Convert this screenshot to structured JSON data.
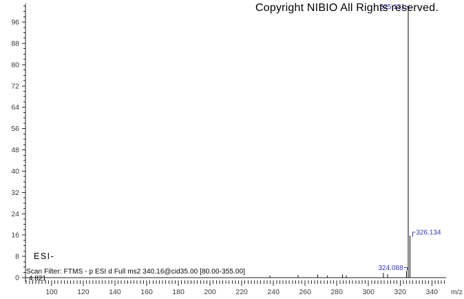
{
  "copyright": "Copyright NIBIO All Rights reserved.",
  "annotations": {
    "ionization_mode": "ESI-",
    "scan_filter": "Scan Filter: FTMS - p ESI d Full ms2 340.16@cid35.00 [80.00-355.00]",
    "retention_time": "4.821"
  },
  "chart_data": {
    "type": "bar",
    "subtype": "mass-spectrum-stick-plot",
    "title": "",
    "xlabel": "m/z",
    "ylabel": "",
    "xlim": [
      83.5,
      349
    ],
    "ylim": [
      0,
      103
    ],
    "grid": false,
    "x_major_tick_labels": [
      100,
      120,
      140,
      160,
      180,
      200,
      220,
      240,
      260,
      280,
      300,
      320,
      340
    ],
    "x_minor_tick_step": 2,
    "y_major_tick_labels": [
      0,
      8,
      16,
      24,
      32,
      40,
      48,
      56,
      64,
      72,
      80,
      88,
      96
    ],
    "y_minor_tick_step": 2,
    "peaks": [
      {
        "mz": 237.8,
        "intensity": 0.8
      },
      {
        "mz": 255.5,
        "intensity": 0.9
      },
      {
        "mz": 268.0,
        "intensity": 1.2
      },
      {
        "mz": 274.0,
        "intensity": 0.8
      },
      {
        "mz": 283.5,
        "intensity": 1.2
      },
      {
        "mz": 286.0,
        "intensity": 0.8
      },
      {
        "mz": 309.5,
        "intensity": 1.8
      },
      {
        "mz": 312.0,
        "intensity": 1.3
      },
      {
        "mz": 324.088,
        "intensity": 2.5,
        "label": "324.088",
        "label_side": "left"
      },
      {
        "mz": 325.131,
        "intensity": 100.5,
        "label": "325.131",
        "label_side": "left"
      },
      {
        "mz": 326.134,
        "intensity": 15.8,
        "label": "326.134",
        "label_side": "right"
      }
    ],
    "colors": {
      "peak": "#000000",
      "peak_label": "#3434b4",
      "axis": "#1f1f1f",
      "tick_label": "#3a3a3a"
    }
  }
}
